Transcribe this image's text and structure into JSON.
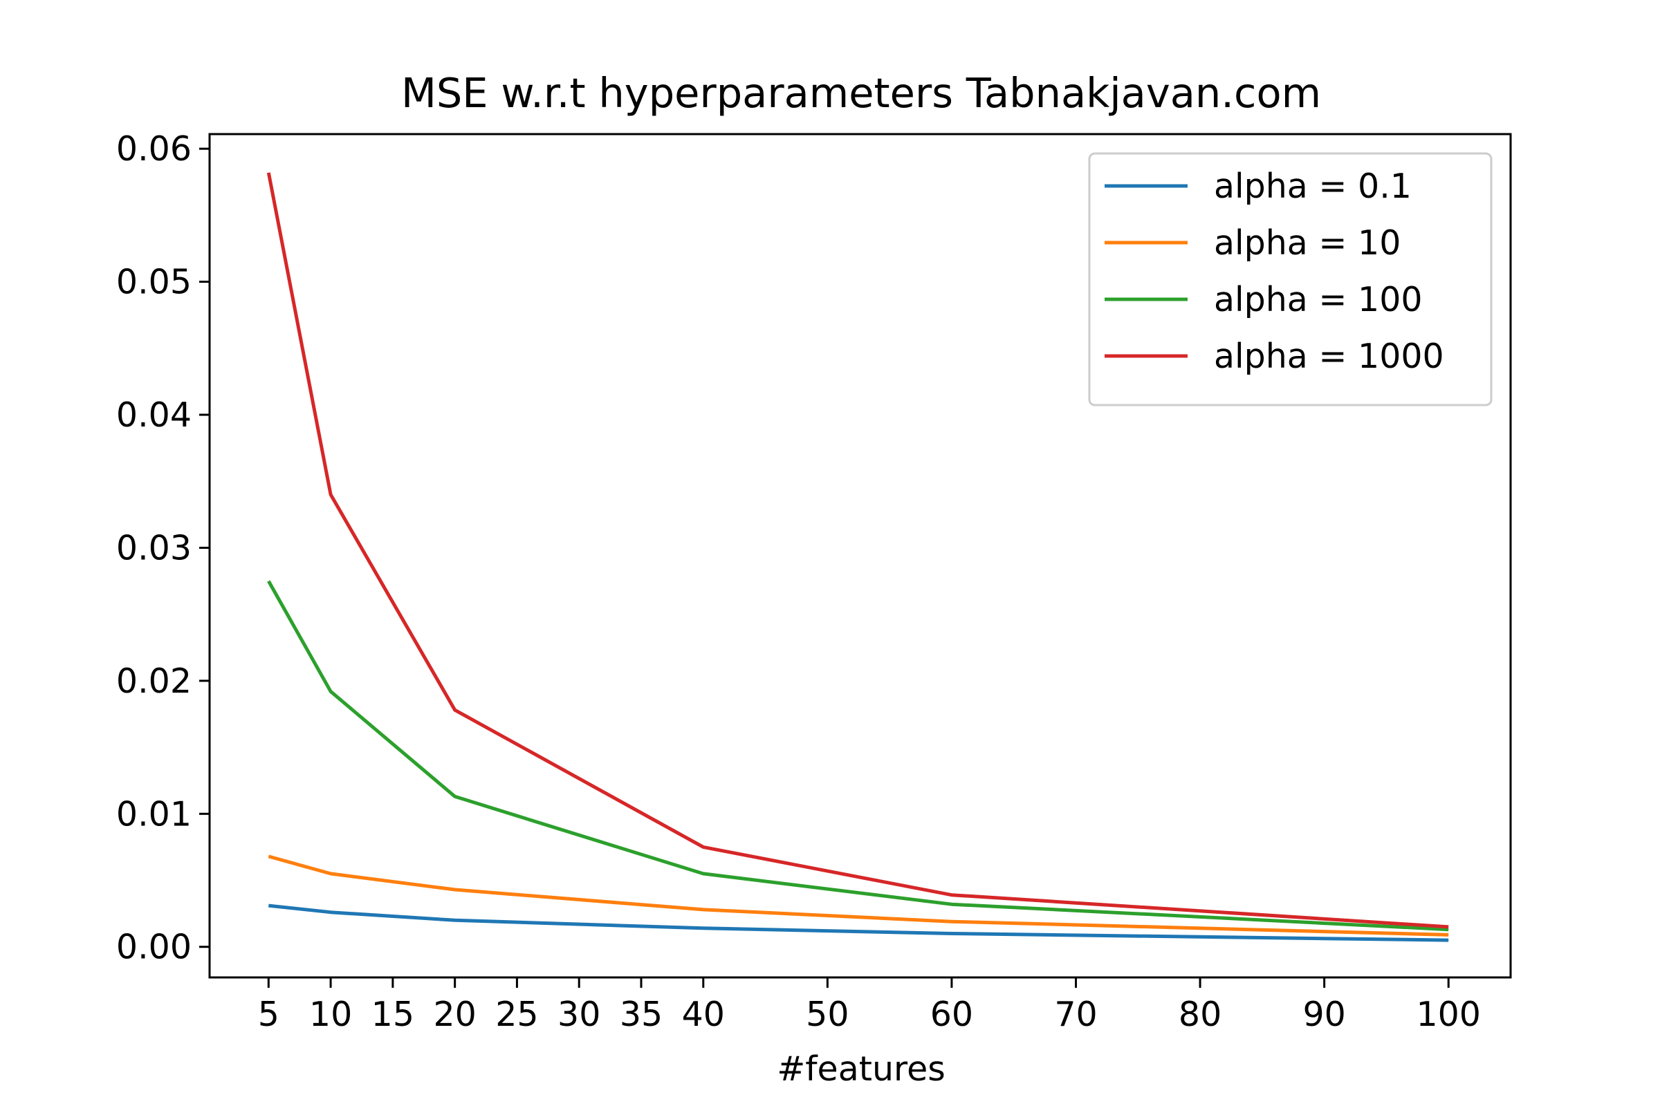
{
  "chart_data": {
    "type": "line",
    "title": "MSE w.r.t hyperparameters Tabnakjavan.com",
    "xlabel": "#features",
    "ylabel": "",
    "x": [
      5,
      10,
      20,
      40,
      60,
      100
    ],
    "xticks": [
      5,
      10,
      15,
      20,
      25,
      30,
      35,
      40,
      50,
      60,
      70,
      80,
      90,
      100
    ],
    "xtick_labels": [
      "5",
      "10",
      "15",
      "20",
      "25",
      "30",
      "35",
      "40",
      "50",
      "60",
      "70",
      "80",
      "90",
      "100"
    ],
    "yticks": [
      0.0,
      0.01,
      0.02,
      0.03,
      0.04,
      0.05,
      0.06
    ],
    "ytick_labels": [
      "0.00",
      "0.01",
      "0.02",
      "0.03",
      "0.04",
      "0.05",
      "0.06"
    ],
    "xlim": [
      0.25,
      105
    ],
    "ylim": [
      -0.0023,
      0.0611
    ],
    "grid": false,
    "legend_position": "top-right",
    "series": [
      {
        "name": "alpha = 0.1",
        "color": "#1f77b4",
        "values": [
          0.0031,
          0.0026,
          0.002,
          0.0014,
          0.001,
          0.0005
        ]
      },
      {
        "name": "alpha = 10",
        "color": "#ff7f0e",
        "values": [
          0.0068,
          0.0055,
          0.0043,
          0.0028,
          0.0019,
          0.0009
        ]
      },
      {
        "name": "alpha = 100",
        "color": "#2ca02c",
        "values": [
          0.0275,
          0.0192,
          0.0113,
          0.0055,
          0.0032,
          0.0013
        ]
      },
      {
        "name": "alpha = 1000",
        "color": "#d62728",
        "values": [
          0.0582,
          0.034,
          0.0178,
          0.0075,
          0.0039,
          0.0015
        ]
      }
    ]
  }
}
